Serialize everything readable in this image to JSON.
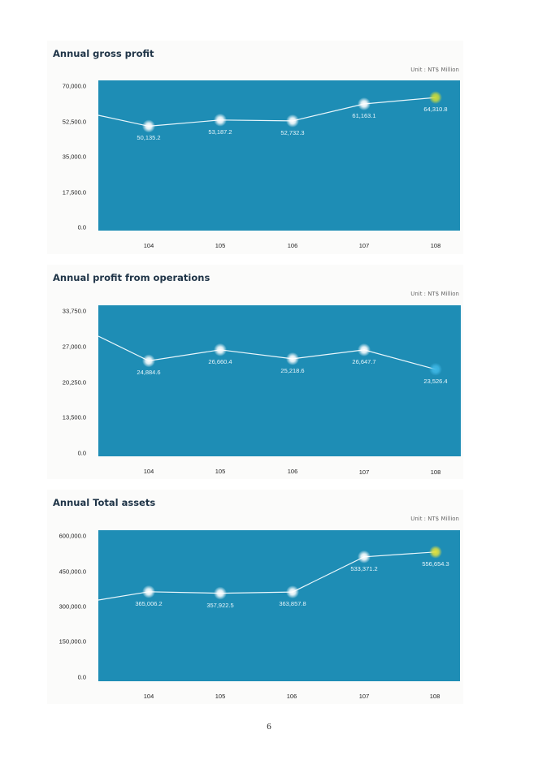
{
  "page": {
    "number": "6"
  },
  "charts": [
    {
      "title": "Annual gross profit",
      "unit": "Unit : NT$ Million",
      "y_ticks": [
        "70,000.0",
        "52,500.0",
        "35,000.0",
        "17,500.0",
        "0.0"
      ],
      "x_ticks": [
        "104",
        "105",
        "106",
        "107",
        "108"
      ],
      "labels": [
        "50,135.2",
        "53,187.2",
        "52,732.3",
        "61,163.1",
        "64,310.8"
      ]
    },
    {
      "title": "Annual profit from operations",
      "unit": "Unit : NT$ Million",
      "y_ticks": [
        "33,750.0",
        "27,000.0",
        "20,250.0",
        "13,500.0",
        "0.0"
      ],
      "x_ticks": [
        "104",
        "105",
        "106",
        "107",
        "108"
      ],
      "labels": [
        "24,884.6",
        "26,660.4",
        "25,218.6",
        "26,647.7",
        "23,526.4"
      ]
    },
    {
      "title": "Annual Total assets",
      "unit": "Unit : NT$ Million",
      "y_ticks": [
        "600,000.0",
        "450,000.0",
        "300,000.0",
        "150,000.0",
        "0.0"
      ],
      "x_ticks": [
        "104",
        "105",
        "106",
        "107",
        "108"
      ],
      "labels": [
        "365,006.2",
        "357,922.5",
        "363,857.8",
        "533,371.2",
        "556,654.3"
      ]
    }
  ],
  "colors": {
    "plot_background": "#1e8db5",
    "line": "#ffffff",
    "marker_glow": "#ffffff",
    "highlight_marker_yellow": "#d8e04a",
    "highlight_marker_blue": "#4fc3ea",
    "title_text": "#1f3447"
  },
  "chart_data": [
    {
      "type": "line",
      "title": "Annual gross profit",
      "subtitle": "Unit : NT$ Million",
      "xlabel": "",
      "ylabel": "",
      "categories": [
        "104",
        "105",
        "106",
        "107",
        "108"
      ],
      "series": [
        {
          "name": "Gross profit",
          "values": [
            50135.2,
            53187.2,
            52732.3,
            61163.1,
            64310.8
          ]
        }
      ],
      "ylim": [
        0,
        70000
      ],
      "yticks": [
        0,
        17500,
        35000,
        52500,
        70000
      ],
      "grid": false,
      "legend": "none"
    },
    {
      "type": "line",
      "title": "Annual profit from operations",
      "subtitle": "Unit : NT$ Million",
      "xlabel": "",
      "ylabel": "",
      "categories": [
        "104",
        "105",
        "106",
        "107",
        "108"
      ],
      "series": [
        {
          "name": "Profit from operations",
          "values": [
            24884.6,
            26660.4,
            25218.6,
            26647.7,
            23526.4
          ]
        }
      ],
      "ylim": [
        0,
        33750
      ],
      "yticks": [
        0,
        13500,
        20250,
        27000,
        33750
      ],
      "grid": false,
      "legend": "none"
    },
    {
      "type": "line",
      "title": "Annual Total assets",
      "subtitle": "Unit : NT$ Million",
      "xlabel": "",
      "ylabel": "",
      "categories": [
        "104",
        "105",
        "106",
        "107",
        "108"
      ],
      "series": [
        {
          "name": "Total assets",
          "values": [
            365006.2,
            357922.5,
            363857.8,
            533371.2,
            556654.3
          ]
        }
      ],
      "ylim": [
        0,
        600000
      ],
      "yticks": [
        0,
        150000,
        300000,
        450000,
        600000
      ],
      "grid": false,
      "legend": "none"
    }
  ]
}
